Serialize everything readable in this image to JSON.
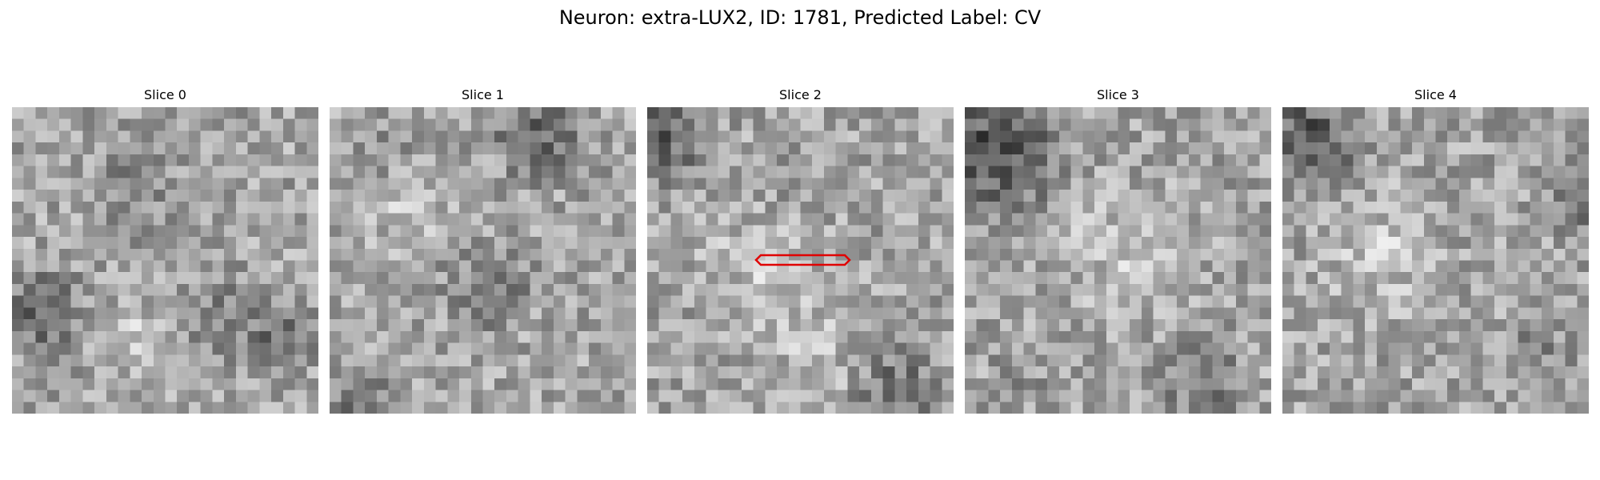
{
  "figure": {
    "title": "Neuron: extra-LUX2, ID: 1781, Predicted Label: CV"
  },
  "panels": [
    {
      "title": "Slice 0"
    },
    {
      "title": "Slice 1"
    },
    {
      "title": "Slice 2"
    },
    {
      "title": "Slice 3"
    },
    {
      "title": "Slice 4"
    }
  ],
  "colors": {
    "colormap": "grayscale",
    "roi_outline": "#e00000"
  }
}
